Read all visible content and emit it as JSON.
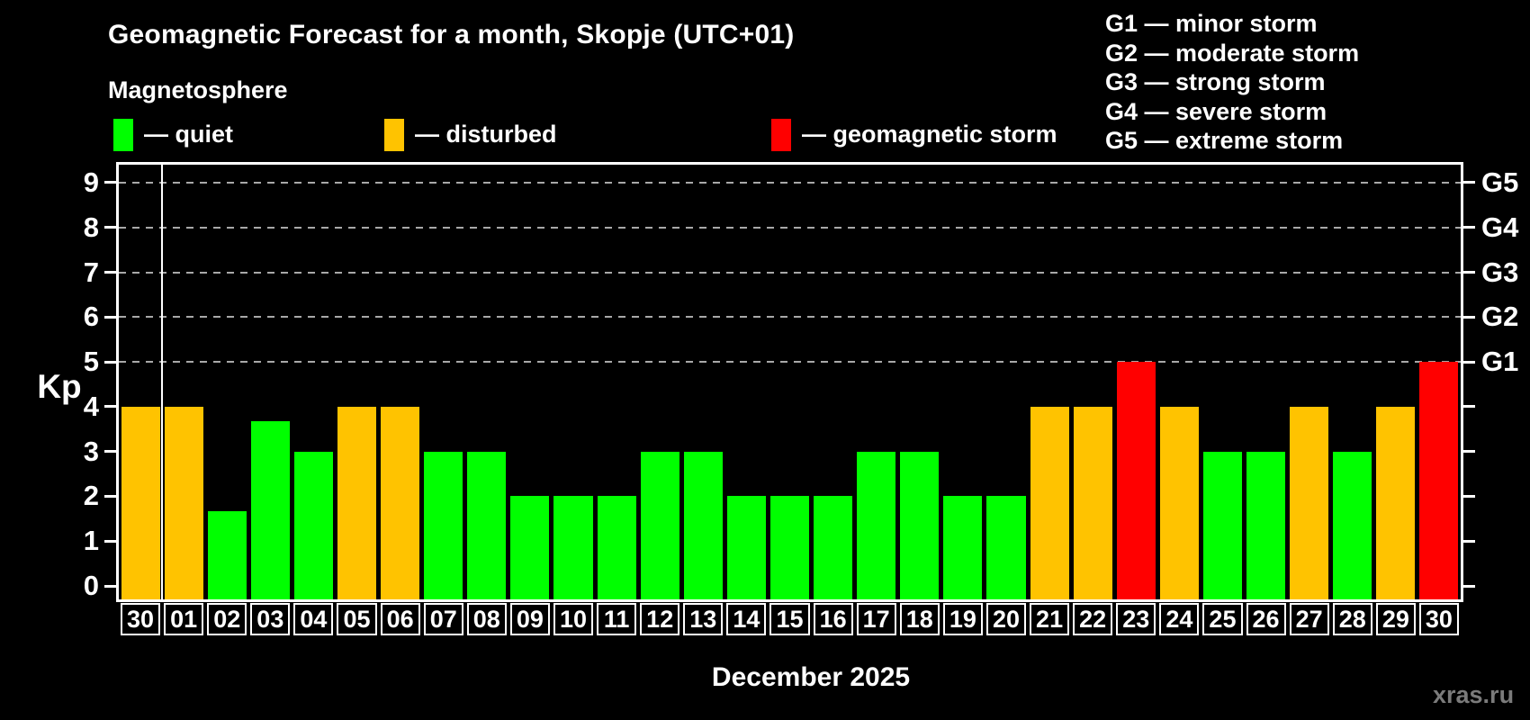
{
  "title": "Geomagnetic Forecast for a month, Skopje (UTC+01)",
  "subtitle": "Magnetosphere",
  "legend": {
    "items": [
      {
        "key": "quiet",
        "label": "— quiet",
        "color": "#00ff00"
      },
      {
        "key": "disturbed",
        "label": "— disturbed",
        "color": "#ffc300"
      },
      {
        "key": "storm",
        "label": "— geomagnetic storm",
        "color": "#ff0000"
      }
    ]
  },
  "g_legend": [
    "G1 — minor storm",
    "G2 — moderate storm",
    "G3 — strong storm",
    "G4 — severe storm",
    "G5 — extreme storm"
  ],
  "watermark": "xras.ru",
  "chart_data": {
    "type": "bar",
    "title": "Geomagnetic Forecast for a month, Skopje (UTC+01)",
    "xlabel": "December 2025",
    "ylabel": "Kp",
    "categories": [
      "30",
      "01",
      "02",
      "03",
      "04",
      "05",
      "06",
      "07",
      "08",
      "09",
      "10",
      "11",
      "12",
      "13",
      "14",
      "15",
      "16",
      "17",
      "18",
      "19",
      "20",
      "21",
      "22",
      "23",
      "24",
      "25",
      "26",
      "27",
      "28",
      "29",
      "30"
    ],
    "values": [
      4,
      4,
      1.67,
      3.67,
      3,
      4,
      4,
      3,
      3,
      2,
      2,
      2,
      3,
      3,
      2,
      2,
      2,
      3,
      3,
      2,
      2,
      4,
      4,
      5,
      4,
      3,
      3,
      4,
      3,
      4,
      5
    ],
    "statuses": [
      "disturbed",
      "disturbed",
      "quiet",
      "quiet",
      "quiet",
      "disturbed",
      "disturbed",
      "quiet",
      "quiet",
      "quiet",
      "quiet",
      "quiet",
      "quiet",
      "quiet",
      "quiet",
      "quiet",
      "quiet",
      "quiet",
      "quiet",
      "quiet",
      "quiet",
      "disturbed",
      "disturbed",
      "storm",
      "disturbed",
      "quiet",
      "quiet",
      "disturbed",
      "quiet",
      "disturbed",
      "storm"
    ],
    "status_colors": {
      "quiet": "#00ff00",
      "disturbed": "#ffc300",
      "storm": "#ff0000"
    },
    "ylim": [
      -0.3,
      9.4
    ],
    "y_ticks": [
      0,
      1,
      2,
      3,
      4,
      5,
      6,
      7,
      8,
      9
    ],
    "gridlines_at": [
      5,
      6,
      7,
      8,
      9
    ],
    "right_axis_labels": [
      {
        "label": "G1",
        "kp": 5
      },
      {
        "label": "G2",
        "kp": 6
      },
      {
        "label": "G3",
        "kp": 7
      },
      {
        "label": "G4",
        "kp": 8
      },
      {
        "label": "G5",
        "kp": 9
      }
    ],
    "month_separator_after_index": 0,
    "grid": true,
    "legend_position": "top-left"
  }
}
